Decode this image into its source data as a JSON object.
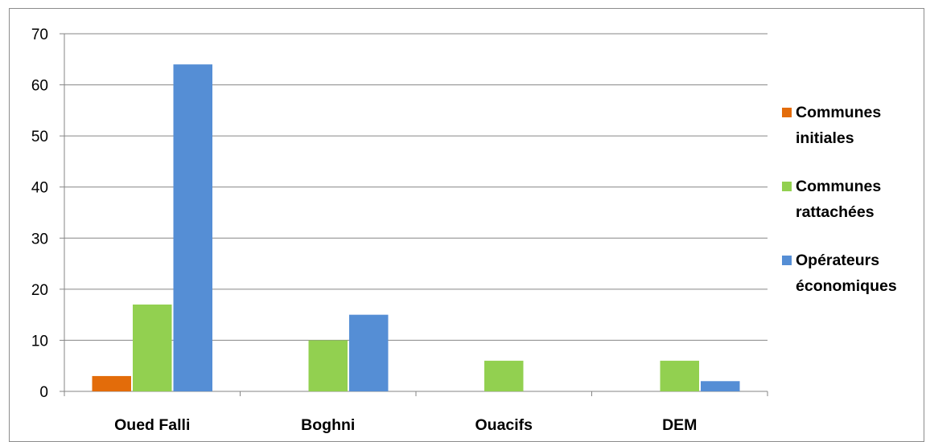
{
  "chart_data": {
    "type": "bar",
    "categories": [
      "Oued Falli",
      "Boghni",
      "Ouacifs",
      "DEM"
    ],
    "series": [
      {
        "name": "Communes initiales",
        "name_lines": [
          "Communes",
          "initiales"
        ],
        "color": "#e36c0a",
        "values": [
          3,
          0,
          0,
          0
        ]
      },
      {
        "name": "Communes rattachées",
        "name_lines": [
          "Communes",
          "rattachées"
        ],
        "color": "#92d050",
        "values": [
          17,
          10,
          6,
          6
        ]
      },
      {
        "name": "Opérateurs économiques",
        "name_lines": [
          "Opérateurs",
          "économiques"
        ],
        "color": "#558ed5",
        "values": [
          64,
          15,
          0,
          2
        ]
      }
    ],
    "yticks": [
      0,
      10,
      20,
      30,
      40,
      50,
      60,
      70
    ],
    "ylim": [
      0,
      70
    ],
    "grid": true,
    "legend_position": "right"
  }
}
